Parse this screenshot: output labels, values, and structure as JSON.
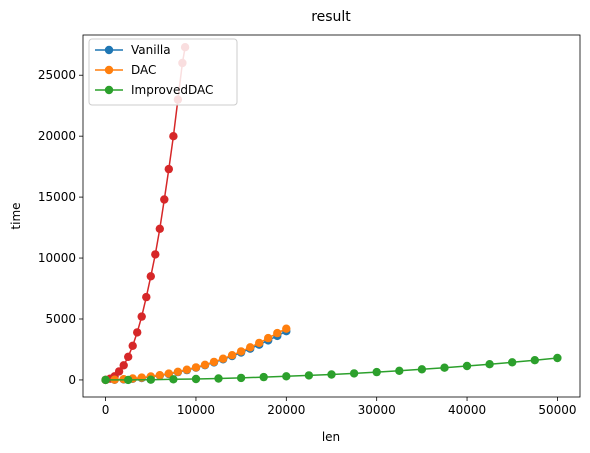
{
  "chart_data": {
    "type": "line",
    "title": "result",
    "xlabel": "len",
    "ylabel": "time",
    "xlim": [
      -2500,
      52500
    ],
    "ylim": [
      -1400,
      28300
    ],
    "xticks": [
      0,
      10000,
      20000,
      30000,
      40000,
      50000
    ],
    "yticks": [
      0,
      5000,
      10000,
      15000,
      20000,
      25000
    ],
    "legend_position": "top-left",
    "series": [
      {
        "name": "Vanilla",
        "color": "#1f77b4",
        "marker": "circle",
        "x": [
          0,
          1000,
          2000,
          3000,
          4000,
          5000,
          6000,
          7000,
          8000,
          9000,
          10000,
          11000,
          12000,
          13000,
          14000,
          15000,
          16000,
          17000,
          18000,
          19000,
          20000
        ],
        "y": [
          0,
          10,
          40,
          90,
          160,
          250,
          360,
          490,
          640,
          810,
          1000,
          1210,
          1440,
          1690,
          1960,
          2250,
          2560,
          2890,
          3240,
          3610,
          4000
        ]
      },
      {
        "name": "DAC",
        "color": "#ff7f0e",
        "marker": "circle",
        "x": [
          0,
          1000,
          2000,
          3000,
          4000,
          5000,
          6000,
          7000,
          8000,
          9000,
          10000,
          11000,
          12000,
          13000,
          14000,
          15000,
          16000,
          17000,
          18000,
          19000,
          20000
        ],
        "y": [
          0,
          20,
          60,
          120,
          190,
          280,
          390,
          520,
          670,
          840,
          1030,
          1240,
          1480,
          1740,
          2030,
          2340,
          2680,
          3040,
          3430,
          3840,
          4200
        ]
      },
      {
        "name": "ImprovedDAC",
        "color": "#2ca02c",
        "marker": "circle",
        "x": [
          0,
          2500,
          5000,
          7500,
          10000,
          12500,
          15000,
          17500,
          20000,
          22500,
          25000,
          27500,
          30000,
          32500,
          35000,
          37500,
          40000,
          42500,
          45000,
          47500,
          50000
        ],
        "y": [
          0,
          5,
          20,
          50,
          80,
          120,
          170,
          230,
          300,
          370,
          450,
          540,
          640,
          750,
          870,
          1000,
          1140,
          1290,
          1450,
          1620,
          1800
        ]
      },
      {
        "name": "",
        "color": "#d62728",
        "marker": "circle",
        "x": [
          0,
          500,
          1000,
          1500,
          2000,
          2500,
          3000,
          3500,
          4000,
          4500,
          5000,
          5500,
          6000,
          6500,
          7000,
          7500,
          8000,
          8500,
          8800
        ],
        "y": [
          0,
          100,
          300,
          700,
          1200,
          1900,
          2800,
          3900,
          5200,
          6800,
          8500,
          10300,
          12400,
          14800,
          17300,
          20000,
          23000,
          26000,
          27300
        ]
      }
    ]
  }
}
